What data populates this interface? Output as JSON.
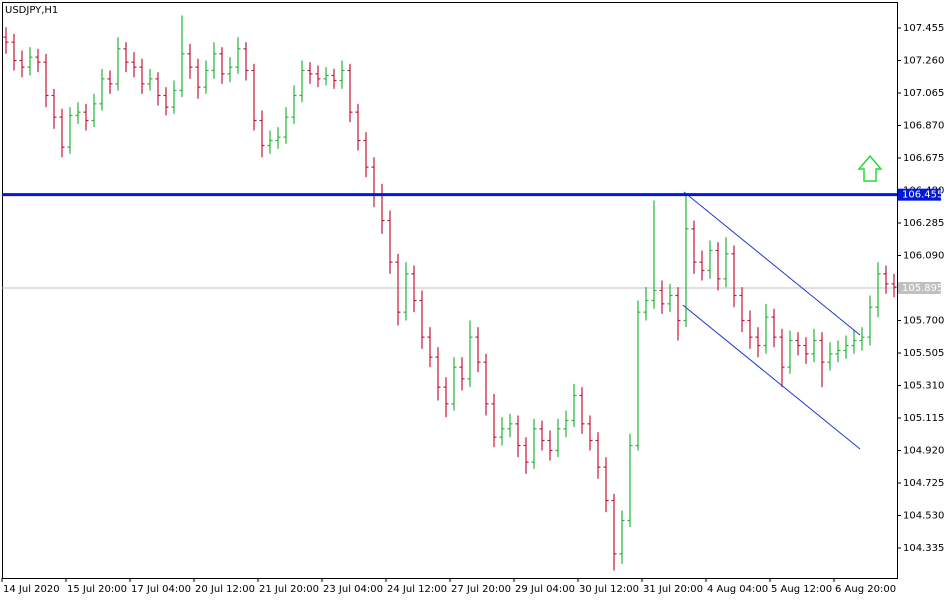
{
  "chart_data": {
    "type": "ohlc",
    "title": "USDJPY,H1",
    "open": [
      107.4,
      107.37,
      107.26,
      107.22,
      107.28,
      107.25,
      107.05,
      106.92,
      106.74,
      106.93,
      106.95,
      106.9,
      107.0,
      107.15,
      107.12,
      107.33,
      107.25,
      107.22,
      107.12,
      107.15,
      107.05,
      106.98,
      107.08,
      107.3,
      107.22,
      107.1,
      107.2,
      107.3,
      107.18,
      107.22,
      107.33,
      107.2,
      106.9,
      106.75,
      106.78,
      106.8,
      106.92,
      107.05,
      107.2,
      107.18,
      107.15,
      107.17,
      107.14,
      107.2,
      106.95,
      106.78,
      106.62,
      106.45,
      106.3,
      106.05,
      105.75,
      105.98,
      105.82,
      105.6,
      105.48,
      105.3,
      105.2,
      105.42,
      105.35,
      105.6,
      105.45,
      105.2,
      105.0,
      105.05,
      105.08,
      104.95,
      104.85,
      105.05,
      104.98,
      104.92,
      105.05,
      105.1,
      105.25,
      105.08,
      104.98,
      104.82,
      104.62,
      104.3,
      104.5,
      104.95,
      105.75,
      105.82,
      105.88,
      105.8,
      105.85,
      105.7,
      106.25,
      106.05,
      106.0,
      106.12,
      105.95,
      106.1,
      105.85,
      105.7,
      105.6,
      105.55,
      105.72,
      105.6,
      105.42,
      105.58,
      105.55,
      105.5,
      105.58,
      105.45,
      105.5,
      105.52,
      105.55,
      105.58,
      105.6,
      105.78,
      105.98,
      105.92
    ],
    "high": [
      107.46,
      107.42,
      107.32,
      107.34,
      107.33,
      107.3,
      107.09,
      106.97,
      106.98,
      107.01,
      107.0,
      107.06,
      107.21,
      107.2,
      107.4,
      107.37,
      107.31,
      107.27,
      107.21,
      107.19,
      107.1,
      107.14,
      107.53,
      107.36,
      107.27,
      107.26,
      107.37,
      107.34,
      107.28,
      107.4,
      107.37,
      107.24,
      106.96,
      106.84,
      106.86,
      106.98,
      107.11,
      107.26,
      107.25,
      107.23,
      107.22,
      107.21,
      107.26,
      107.24,
      107.0,
      106.83,
      106.68,
      106.52,
      106.36,
      106.1,
      106.05,
      106.03,
      105.88,
      105.66,
      105.54,
      105.36,
      105.48,
      105.48,
      105.7,
      105.66,
      105.5,
      105.26,
      105.12,
      105.14,
      105.13,
      105.0,
      105.11,
      105.1,
      105.04,
      105.11,
      105.16,
      105.32,
      105.3,
      105.13,
      105.03,
      104.88,
      104.66,
      104.56,
      105.02,
      105.82,
      105.9,
      106.42,
      105.94,
      105.92,
      105.9,
      106.45,
      106.3,
      106.12,
      106.18,
      106.17,
      106.2,
      106.15,
      105.9,
      105.76,
      105.66,
      105.8,
      105.77,
      105.65,
      105.64,
      105.63,
      105.6,
      105.65,
      105.63,
      105.57,
      105.58,
      105.61,
      105.64,
      105.66,
      105.85,
      106.05,
      106.03,
      105.98
    ],
    "low": [
      107.3,
      107.2,
      107.16,
      107.17,
      107.19,
      106.98,
      106.85,
      106.68,
      106.7,
      106.88,
      106.84,
      106.86,
      106.96,
      107.06,
      107.08,
      107.19,
      107.16,
      107.06,
      107.08,
      106.99,
      106.93,
      106.94,
      107.04,
      107.15,
      107.03,
      107.06,
      107.15,
      107.12,
      107.13,
      107.18,
      107.14,
      106.84,
      106.68,
      106.7,
      106.73,
      106.76,
      106.88,
      107.01,
      107.12,
      107.1,
      107.11,
      107.09,
      107.09,
      106.89,
      106.72,
      106.56,
      106.38,
      106.22,
      105.98,
      105.67,
      105.7,
      105.75,
      105.53,
      105.42,
      105.22,
      105.12,
      105.16,
      105.28,
      105.3,
      105.39,
      105.13,
      104.94,
      104.95,
      105.0,
      104.88,
      104.78,
      104.81,
      104.92,
      104.86,
      104.88,
      105.0,
      105.06,
      105.02,
      104.92,
      104.75,
      104.55,
      104.2,
      104.24,
      104.46,
      104.92,
      105.7,
      105.77,
      105.74,
      105.75,
      105.58,
      105.66,
      105.98,
      105.94,
      105.95,
      105.88,
      105.9,
      105.78,
      105.63,
      105.53,
      105.48,
      105.5,
      105.54,
      105.3,
      105.38,
      105.49,
      105.44,
      105.45,
      105.3,
      105.4,
      105.45,
      105.47,
      105.5,
      105.52,
      105.55,
      105.72,
      105.86,
      105.84
    ],
    "close": [
      107.37,
      107.26,
      107.22,
      107.28,
      107.25,
      107.05,
      106.92,
      106.74,
      106.93,
      106.95,
      106.9,
      107.0,
      107.15,
      107.12,
      107.33,
      107.25,
      107.22,
      107.12,
      107.15,
      107.05,
      106.98,
      107.08,
      107.3,
      107.22,
      107.1,
      107.2,
      107.3,
      107.18,
      107.22,
      107.33,
      107.2,
      106.9,
      106.75,
      106.78,
      106.8,
      106.92,
      107.05,
      107.2,
      107.18,
      107.15,
      107.17,
      107.14,
      107.2,
      106.95,
      106.78,
      106.62,
      106.45,
      106.3,
      106.05,
      105.75,
      105.98,
      105.82,
      105.6,
      105.48,
      105.3,
      105.2,
      105.42,
      105.35,
      105.6,
      105.45,
      105.2,
      105.0,
      105.05,
      105.08,
      104.95,
      104.85,
      105.05,
      104.98,
      104.92,
      105.05,
      105.1,
      105.25,
      105.08,
      104.98,
      104.82,
      104.62,
      104.3,
      104.5,
      104.95,
      105.75,
      105.82,
      105.88,
      105.8,
      105.85,
      105.7,
      106.25,
      106.05,
      106.0,
      106.12,
      105.95,
      106.1,
      105.85,
      105.7,
      105.6,
      105.55,
      105.72,
      105.6,
      105.42,
      105.58,
      105.55,
      105.5,
      105.58,
      105.45,
      105.5,
      105.52,
      105.55,
      105.58,
      105.6,
      105.78,
      105.98,
      105.92,
      105.9
    ],
    "up_color": "#26b43a",
    "down_color": "#c8173c",
    "ylim": [
      104.155,
      107.611
    ],
    "yticks": [
      107.455,
      {
        "value": 107.26,
        "label": "107.260"
      },
      107.065,
      {
        "value": 106.87,
        "label": "106.870"
      },
      106.675,
      {
        "value": 106.48,
        "label": "106.480"
      },
      106.285,
      {
        "value": 106.09,
        "label": "106.090"
      },
      {
        "value": 105.7,
        "label": "105.700"
      },
      105.505,
      {
        "value": 105.31,
        "label": "105.310"
      },
      105.115,
      {
        "value": 104.92,
        "label": "104.920"
      },
      104.725,
      {
        "value": 104.53,
        "label": "104.530"
      },
      104.335
    ],
    "xticks": [
      {
        "value": 0,
        "label": "14 Jul 2020"
      },
      {
        "value": 8,
        "label": "15 Jul 20:00"
      },
      {
        "value": 16,
        "label": "17 Jul 04:00"
      },
      {
        "value": 24,
        "label": "20 Jul 12:00"
      },
      {
        "value": 32,
        "label": "21 Jul 20:00"
      },
      {
        "value": 40,
        "label": "23 Jul 04:00"
      },
      {
        "value": 48,
        "label": "24 Jul 12:00"
      },
      {
        "value": 56,
        "label": "27 Jul 20:00"
      },
      {
        "value": 64,
        "label": "29 Jul 04:00"
      },
      {
        "value": 72,
        "label": "30 Jul 12:00"
      },
      {
        "value": 80,
        "label": "31 Jul 20:00"
      },
      {
        "value": 88,
        "label": "4 Aug 04:00"
      },
      {
        "value": 96,
        "label": "5 Aug 12:00"
      },
      {
        "value": 104,
        "label": "6 Aug 20:00"
      }
    ],
    "level": 106.455,
    "level_color": "#0018d8",
    "last_price": 105.895,
    "last_color": "#c0c0c0",
    "trendlines": [
      {
        "x": [
          84.75,
          106.75
        ],
        "y": [
          106.471,
          105.613
        ]
      },
      {
        "x": [
          84.6,
          106.75
        ],
        "y": [
          105.793,
          104.929
        ]
      }
    ],
    "trend_color": "#1f38d0"
  }
}
